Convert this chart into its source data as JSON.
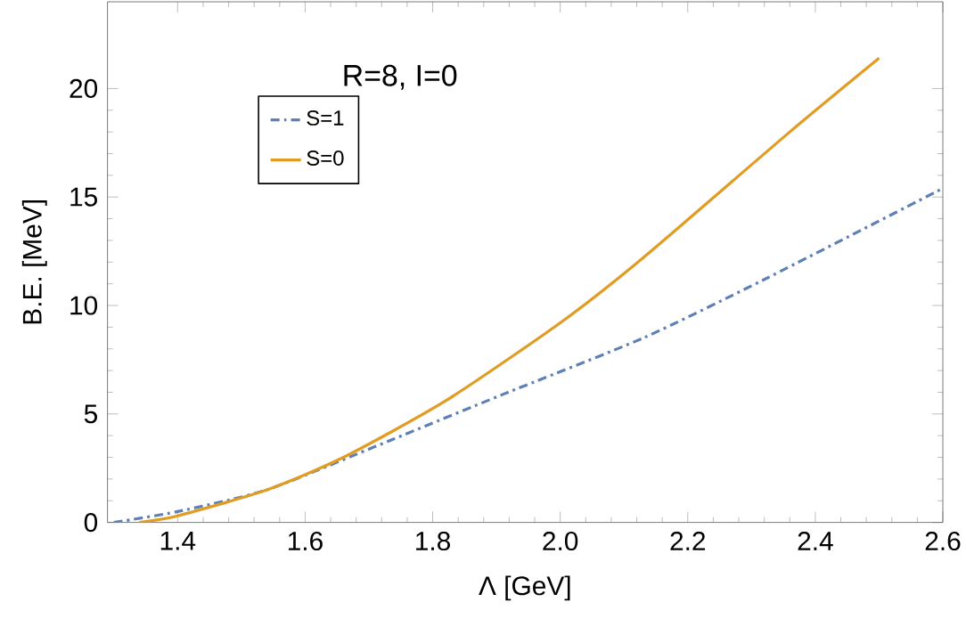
{
  "chart_data": {
    "type": "line",
    "xlabel": "Λ [GeV]",
    "ylabel": "B.E. [MeV]",
    "annotations": [
      "R=8, I=0"
    ],
    "xlim": [
      1.29,
      2.6
    ],
    "ylim": [
      0,
      24
    ],
    "xticks": [
      {
        "value": 1.4,
        "label": "1.4"
      },
      {
        "value": 1.6,
        "label": "1.6"
      },
      {
        "value": 1.8,
        "label": "1.8"
      },
      {
        "value": 2.0,
        "label": "2.0"
      },
      {
        "value": 2.2,
        "label": "2.2"
      },
      {
        "value": 2.4,
        "label": "2.4"
      },
      {
        "value": 2.6,
        "label": "2.6"
      }
    ],
    "yticks": [
      0,
      5,
      10,
      15,
      20
    ],
    "legend": "top left",
    "grid": false,
    "series": [
      {
        "name": "S=1",
        "color": "#5e81b5",
        "line_style": "dashdot",
        "x": [
          1.3,
          1.4,
          1.54,
          1.71,
          1.76,
          1.91,
          2.13,
          2.32,
          2.6
        ],
        "values": [
          0,
          0.5,
          1.5,
          3.5,
          4.1,
          5.9,
          8.5,
          11.2,
          15.4
        ]
      },
      {
        "name": "S=0",
        "color": "#e19c24",
        "line_style": "solid",
        "x": [
          1.34,
          1.4,
          1.54,
          1.66,
          1.82,
          2.0,
          2.13,
          2.36,
          2.5
        ],
        "values": [
          0,
          0.3,
          1.5,
          3.0,
          5.6,
          9.2,
          12.2,
          18.0,
          21.4
        ]
      }
    ]
  }
}
